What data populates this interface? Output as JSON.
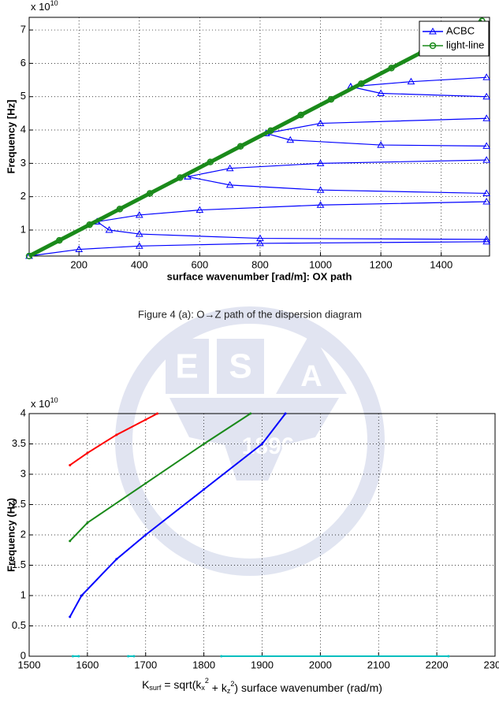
{
  "watermark": {
    "letters": [
      "E",
      "S",
      "A"
    ],
    "year": "1896"
  },
  "caption": "Figure 4 (a): O→Z path of the dispersion diagram",
  "chart_data": [
    {
      "type": "line",
      "multiplier": {
        "base": "x 10",
        "exponent": "10"
      },
      "xlabel": "surface wavenumber [rad/m]: OX path",
      "ylabel": "Frequency [Hz]",
      "xlim": [
        35,
        1560
      ],
      "ylim": [
        0.22,
        7.38
      ],
      "xticks": [
        200,
        400,
        600,
        800,
        1000,
        1200,
        1400
      ],
      "yticks": [
        1,
        2,
        3,
        4,
        5,
        6,
        7
      ],
      "grid": true,
      "legend": "upper right",
      "series": [
        {
          "name": "ACBC",
          "color": "#0000ff",
          "marker": "triangle",
          "x": [
            35,
            200,
            400,
            800,
            1550,
            null,
            260,
            300,
            400,
            800,
            1550,
            null,
            260,
            400,
            600,
            1000,
            1550,
            null,
            560,
            700,
            1000,
            1550,
            null,
            560,
            700,
            1000,
            1550,
            null,
            820,
            900,
            1200,
            1550,
            null,
            820,
            1000,
            1550,
            null,
            1100,
            1200,
            1550,
            null,
            1100,
            1300,
            1550
          ],
          "values": [
            0.22,
            0.42,
            0.52,
            0.6,
            0.65,
            null,
            1.25,
            1.0,
            0.88,
            0.75,
            0.72,
            null,
            1.25,
            1.45,
            1.6,
            1.75,
            1.85,
            null,
            2.6,
            2.35,
            2.2,
            2.1,
            null,
            2.6,
            2.85,
            3.0,
            3.1,
            null,
            3.9,
            3.7,
            3.55,
            3.52,
            null,
            3.9,
            4.2,
            4.35,
            null,
            5.3,
            5.1,
            5.0,
            null,
            5.3,
            5.45,
            5.58
          ]
        },
        {
          "name": "light-line",
          "color": "#1a8a1a",
          "marker": "circle",
          "x": [
            35,
            135,
            235,
            335,
            435,
            535,
            635,
            735,
            835,
            935,
            1035,
            1135,
            1235,
            1335,
            1435,
            1535
          ],
          "values": [
            0.22,
            0.69,
            1.16,
            1.63,
            2.1,
            2.57,
            3.04,
            3.51,
            3.98,
            4.45,
            4.92,
            5.39,
            5.86,
            6.33,
            6.8,
            7.27
          ]
        }
      ]
    },
    {
      "type": "line",
      "multiplier": {
        "base": "x 10",
        "exponent": "10"
      },
      "xlabel_parts": [
        "K",
        "surf",
        " = sqrt(k",
        "x",
        "2",
        " + k",
        "z",
        "2",
        ") surface wavenumber (rad/m)"
      ],
      "ylabel": "Frequency (Hz)",
      "xlim": [
        1500,
        2300
      ],
      "ylim": [
        0,
        4
      ],
      "xticks": [
        1500,
        1600,
        1700,
        1800,
        1900,
        2000,
        2100,
        2200,
        2300
      ],
      "yticks": [
        0,
        0.5,
        1,
        1.5,
        2,
        2.5,
        3,
        3.5,
        4
      ],
      "grid": true,
      "series": [
        {
          "color": "#ff0000",
          "marker": "dot",
          "x": [
            1570,
            1600,
            1650,
            1700,
            1720
          ],
          "values": [
            3.15,
            3.35,
            3.65,
            3.9,
            4.0
          ]
        },
        {
          "color": "#1a8a1a",
          "marker": "dot",
          "x": [
            1570,
            1600,
            1700,
            1800,
            1880
          ],
          "values": [
            1.9,
            2.2,
            2.85,
            3.5,
            4.0
          ]
        },
        {
          "color": "#0000ff",
          "marker": "dot",
          "x": [
            1570,
            1590,
            1650,
            1700,
            1800,
            1900,
            1940
          ],
          "values": [
            0.65,
            1.0,
            1.6,
            2.0,
            2.75,
            3.5,
            4.0
          ]
        },
        {
          "color": "#00bfbf",
          "marker": "dot",
          "x": [
            1575,
            1585,
            null,
            1670,
            1680,
            null,
            1830,
            2220
          ],
          "values": [
            0,
            0,
            null,
            0,
            0,
            null,
            0,
            0
          ]
        }
      ]
    }
  ]
}
